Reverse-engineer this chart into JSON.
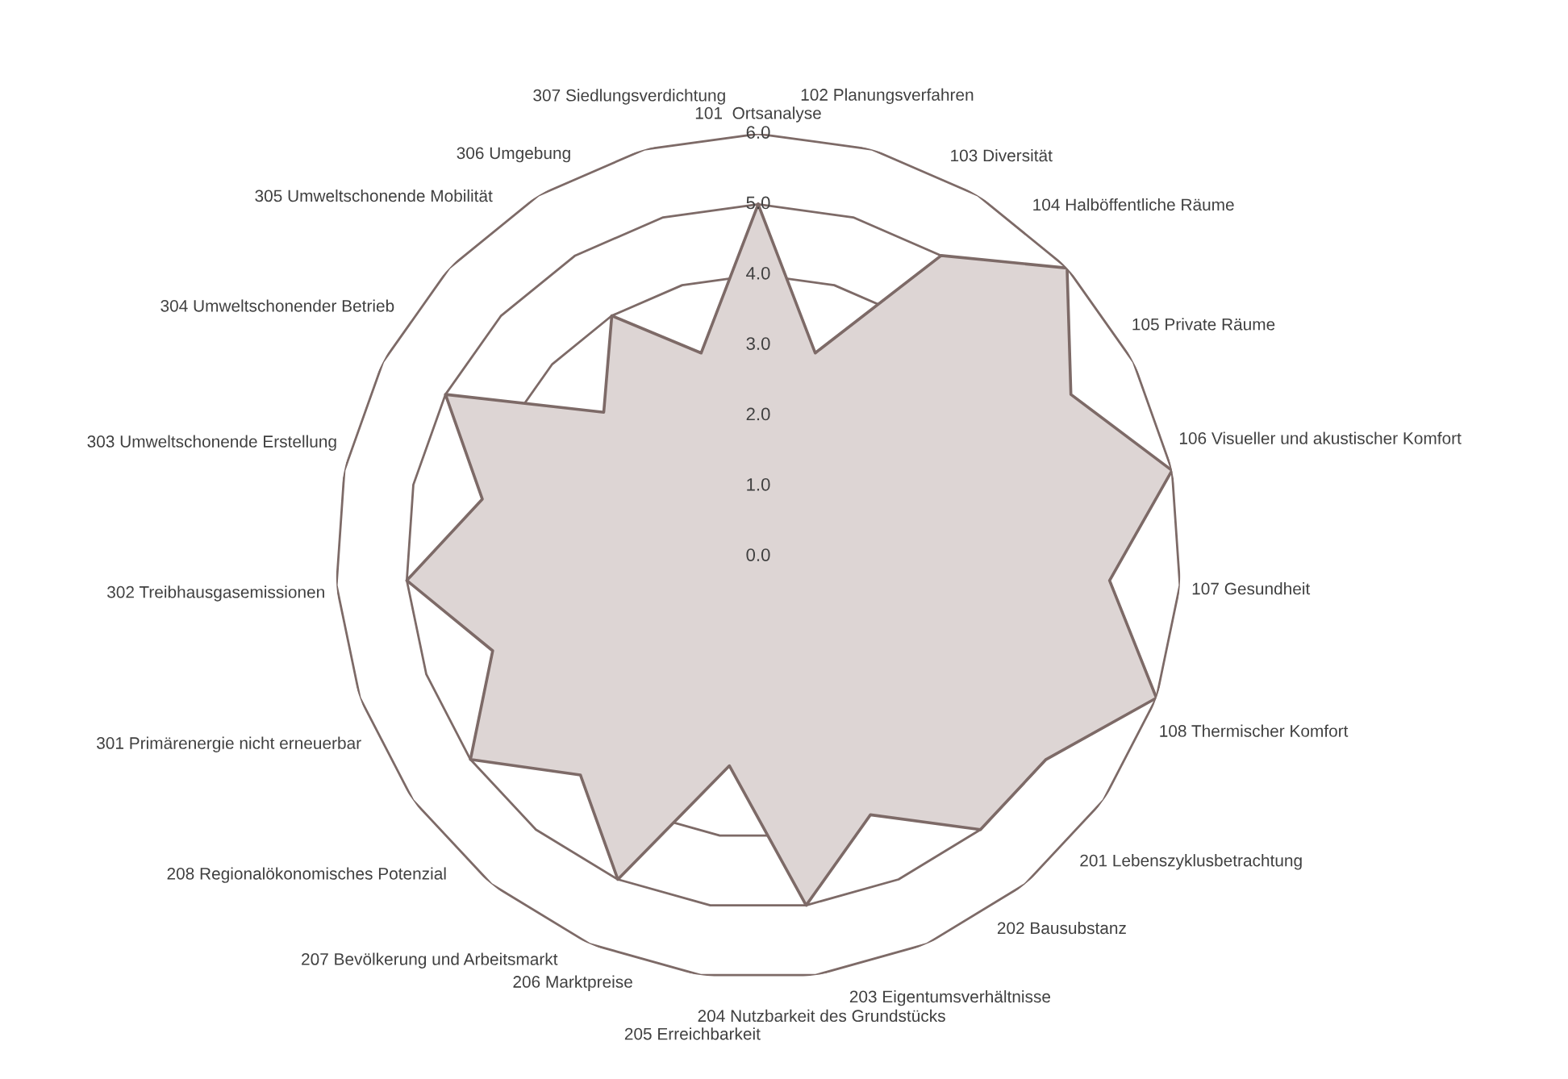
{
  "chart_data": {
    "type": "radar",
    "categories": [
      "101  Ortsanalyse",
      "102 Planungsverfahren",
      "103 Diversität",
      "104 Halböffentliche Räume",
      "105 Private Räume",
      "106 Visueller und akustischer Komfort",
      "107 Gesundheit",
      "108 Thermischer Komfort",
      "201 Lebenszyklusbetrachtung",
      "202 Bausubstanz",
      "203 Eigentumsverhältnisse",
      "204 Nutzbarkeit des Grundstücks",
      "205 Erreichbarkeit",
      "206 Marktpreise",
      "207 Bevölkerung und Arbeitsmarkt",
      "208 Regionalökonomisches Potenzial",
      "301 Primärenergie nicht erneuerbar",
      "302 Treibhausgasemissionen",
      "303 Umweltschonende Erstellung",
      "304 Umweltschonender Betrieb",
      "305 Umweltschonende Mobilität",
      "306 Umgebung",
      "307 Siedlungsverdichtung"
    ],
    "series": [
      {
        "color": "#ddd5d4",
        "values": [
          5,
          3,
          5,
          6,
          5,
          6,
          5,
          6,
          5,
          5,
          4,
          5,
          3,
          5,
          4,
          5,
          4,
          5,
          4,
          5,
          3,
          4,
          3
        ]
      }
    ],
    "ylim": [
      0,
      6
    ],
    "yticks": [
      {
        "value": 0,
        "label": "0.0"
      },
      {
        "value": 1,
        "label": "1.0"
      },
      {
        "value": 2,
        "label": "2.0"
      },
      {
        "value": 3,
        "label": "3.0"
      },
      {
        "value": 4,
        "label": "4.0"
      },
      {
        "value": 5,
        "label": "5.0"
      },
      {
        "value": 6,
        "label": "6.0"
      }
    ],
    "grid": true
  }
}
